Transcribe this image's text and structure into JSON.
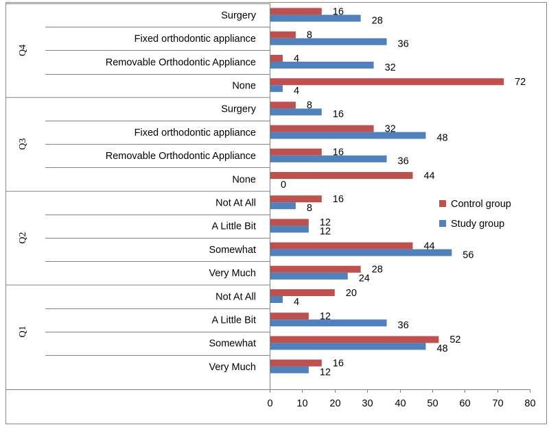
{
  "chart_data": {
    "type": "bar",
    "orientation": "horizontal",
    "xlim": [
      0,
      80
    ],
    "x_ticks": [
      0,
      10,
      20,
      30,
      40,
      50,
      60,
      70,
      80
    ],
    "legend_position": "right",
    "series": [
      {
        "name": "Control group",
        "color": "#c0504d"
      },
      {
        "name": "Study group",
        "color": "#4f81bd"
      }
    ],
    "groups": [
      {
        "name": "Q4",
        "categories": [
          {
            "label": "Surgery",
            "control": 16,
            "study": 28
          },
          {
            "label": "Fixed orthodontic appliance",
            "control": 8,
            "study": 36
          },
          {
            "label": "Removable Orthodontic Appliance",
            "control": 4,
            "study": 32
          },
          {
            "label": "None",
            "control": 72,
            "study": 4
          }
        ]
      },
      {
        "name": "Q3",
        "categories": [
          {
            "label": "Surgery",
            "control": 8,
            "study": 16
          },
          {
            "label": "Fixed orthodontic appliance",
            "control": 32,
            "study": 48
          },
          {
            "label": "Removable Orthodontic Appliance",
            "control": 16,
            "study": 36
          },
          {
            "label": "None",
            "control": 44,
            "study": 0
          }
        ]
      },
      {
        "name": "Q2",
        "categories": [
          {
            "label": "Not At All",
            "control": 16,
            "study": 8
          },
          {
            "label": "A Little Bit",
            "control": 12,
            "study": 12
          },
          {
            "label": "Somewhat",
            "control": 44,
            "study": 56
          },
          {
            "label": "Very Much",
            "control": 28,
            "study": 24
          }
        ]
      },
      {
        "name": "Q1",
        "categories": [
          {
            "label": "Not At All",
            "control": 20,
            "study": 4
          },
          {
            "label": "A Little Bit",
            "control": 12,
            "study": 36
          },
          {
            "label": "Somewhat",
            "control": 52,
            "study": 48
          },
          {
            "label": "Very Much",
            "control": 16,
            "study": 12
          }
        ]
      }
    ]
  }
}
